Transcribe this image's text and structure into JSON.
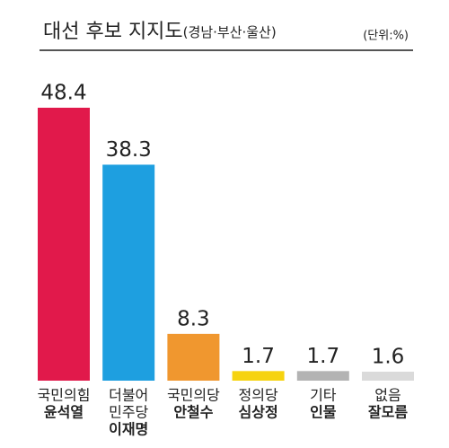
{
  "chart_data": {
    "type": "bar",
    "title": "대선 후보 지지도",
    "subtitle": "(경남·부산·울산)",
    "unit_label": "(단위:%)",
    "categories": [
      [
        "국민의힘",
        "윤석열"
      ],
      [
        "더불어",
        "민주당",
        "이재명"
      ],
      [
        "국민의당",
        "안철수"
      ],
      [
        "정의당",
        "심상정"
      ],
      [
        "기타",
        "인물"
      ],
      [
        "없음",
        "잘모름"
      ]
    ],
    "values": [
      48.4,
      38.3,
      8.3,
      1.7,
      1.7,
      1.6
    ],
    "colors": [
      "#e1194b",
      "#1e9fe0",
      "#f0972f",
      "#f6d30f",
      "#b3b3b3",
      "#dadada"
    ]
  }
}
